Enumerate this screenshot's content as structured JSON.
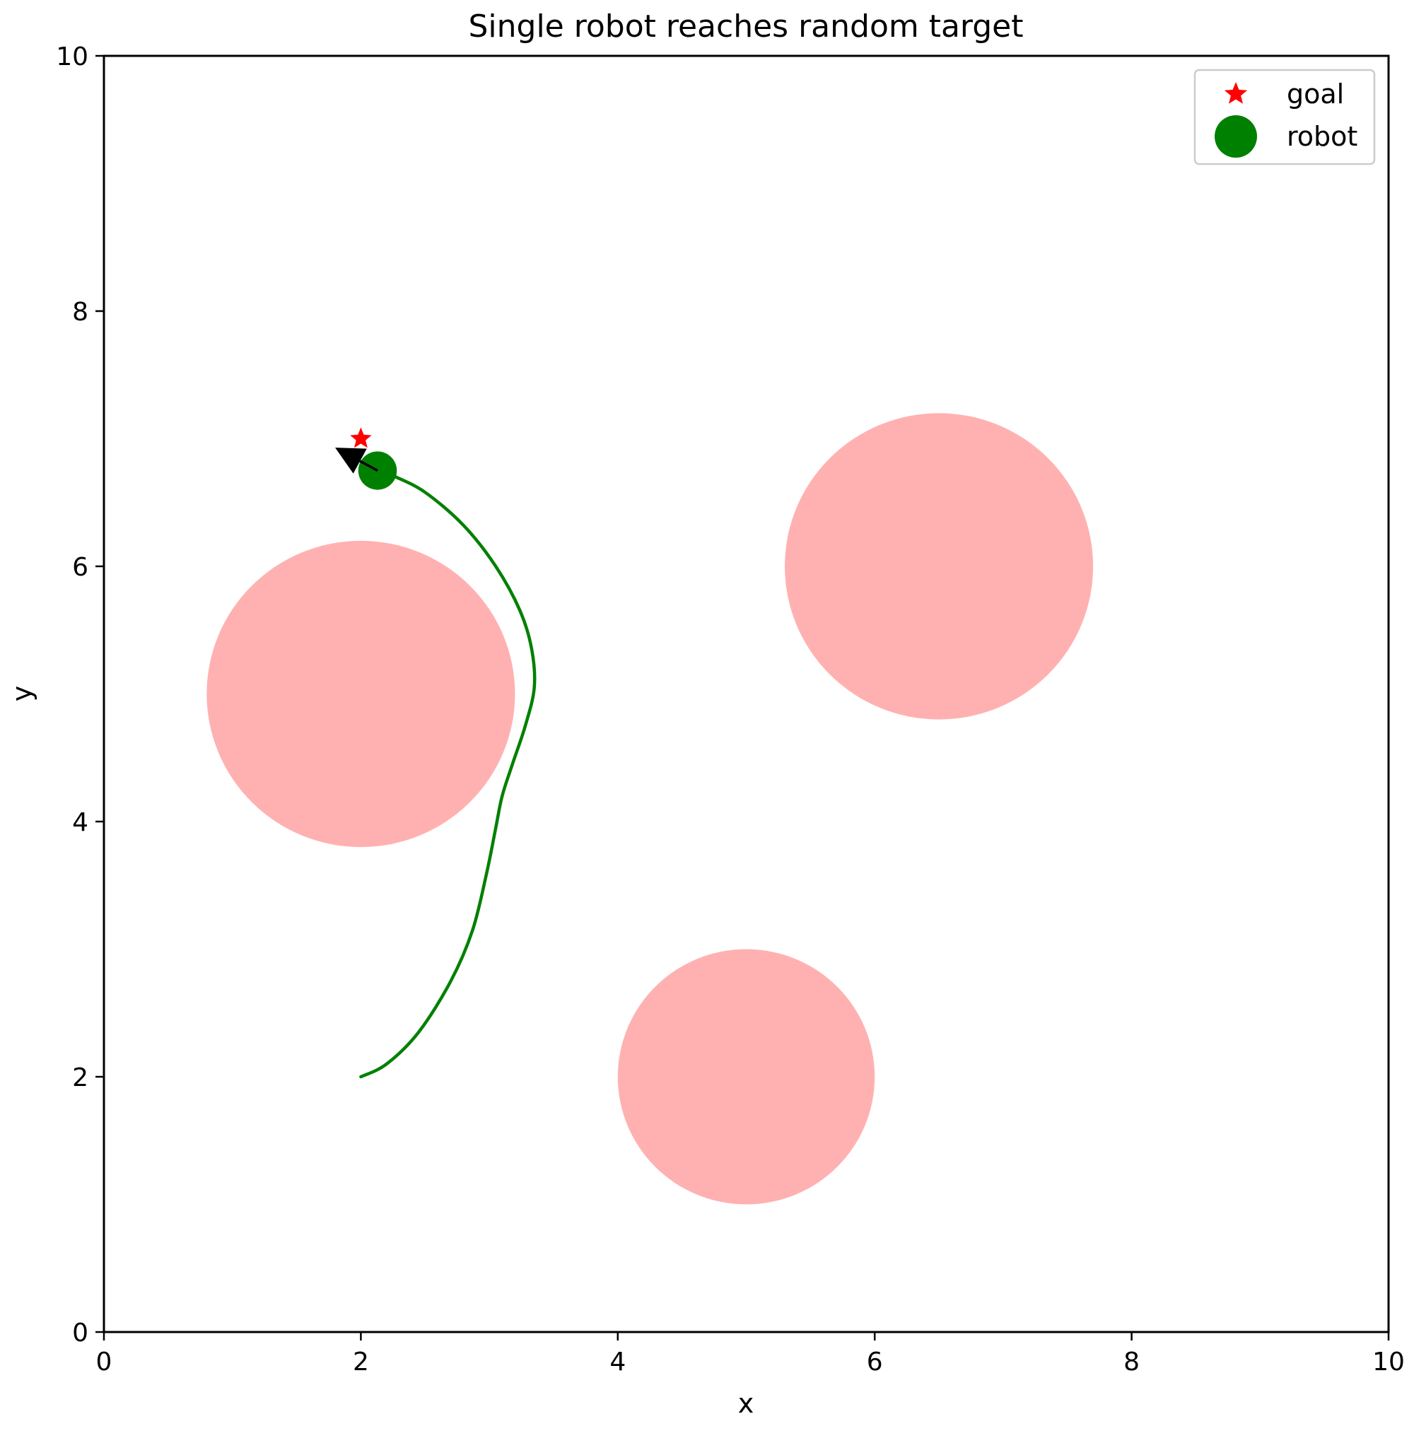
{
  "chart_data": {
    "type": "scatter",
    "title": "Single robot reaches random target",
    "xlabel": "x",
    "ylabel": "y",
    "xlim": [
      0,
      10
    ],
    "ylim": [
      0,
      10
    ],
    "xticks": [
      0,
      2,
      4,
      6,
      8,
      10
    ],
    "yticks": [
      0,
      2,
      4,
      6,
      8,
      10
    ],
    "grid": false,
    "legend_position": "top-right",
    "legend": [
      {
        "label": "goal",
        "marker": "star",
        "color": "#ff0000"
      },
      {
        "label": "robot",
        "marker": "circle",
        "color": "#008000"
      }
    ],
    "goal": {
      "x": 2.0,
      "y": 7.0,
      "color": "#ff0000"
    },
    "robot": {
      "x": 2.13,
      "y": 6.75,
      "color": "#008000",
      "radius": 0.15
    },
    "heading_arrow": {
      "from": [
        2.13,
        6.75
      ],
      "to": [
        1.8,
        6.93
      ],
      "color": "#000000"
    },
    "obstacles": [
      {
        "cx": 2.0,
        "cy": 5.0,
        "r": 1.2,
        "color": "#ffb1b1"
      },
      {
        "cx": 6.5,
        "cy": 6.0,
        "r": 1.2,
        "color": "#ffb1b1"
      },
      {
        "cx": 5.0,
        "cy": 2.0,
        "r": 1.0,
        "color": "#ffb1b1"
      }
    ],
    "trajectory": {
      "color": "#008000",
      "x": [
        2.0,
        2.2,
        2.45,
        2.7,
        2.87,
        2.98,
        3.05,
        3.1,
        3.18,
        3.28,
        3.35,
        3.33,
        3.24,
        3.05,
        2.8,
        2.5,
        2.25,
        2.13
      ],
      "y": [
        2.0,
        2.1,
        2.35,
        2.75,
        3.15,
        3.6,
        3.95,
        4.2,
        4.45,
        4.75,
        5.05,
        5.35,
        5.65,
        6.0,
        6.32,
        6.58,
        6.71,
        6.75
      ]
    }
  }
}
